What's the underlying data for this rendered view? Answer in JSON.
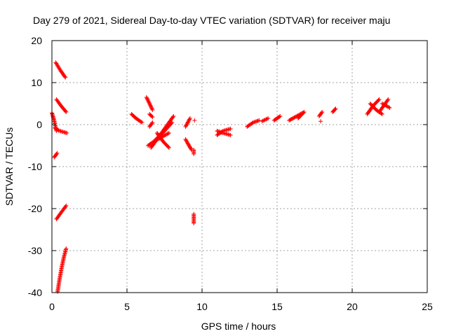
{
  "chart_data": {
    "type": "scatter",
    "title": "Day 279 of 2021, Sidereal Day-to-day VTEC variation (SDTVAR) for receiver maju",
    "xlabel": "GPS time / hours",
    "ylabel": "SDTVAR / TECUs",
    "xlim": [
      0,
      25
    ],
    "ylim": [
      -40,
      20
    ],
    "xticks": [
      0,
      5,
      10,
      15,
      20,
      25
    ],
    "yticks": [
      -40,
      -30,
      -20,
      -10,
      0,
      10,
      20
    ],
    "grid": true,
    "marker": "plus",
    "series_color": "#ff0000",
    "tracks": [
      {
        "x": [
          0.25,
          0.55,
          0.9
        ],
        "y": [
          14.8,
          13.0,
          11.2
        ]
      },
      {
        "x": [
          0.3,
          0.6,
          0.95
        ],
        "y": [
          6.0,
          4.5,
          3.0
        ]
      },
      {
        "x": [
          0.0,
          0.15,
          0.3
        ],
        "y": [
          2.8,
          1.0,
          -1.5
        ]
      },
      {
        "x": [
          0.2,
          0.45,
          0.8,
          1.0
        ],
        "y": [
          -0.8,
          -1.4,
          -1.8,
          -2.0
        ]
      },
      {
        "x": [
          0.15,
          0.35
        ],
        "y": [
          -7.8,
          -6.8
        ]
      },
      {
        "x": [
          0.3,
          0.6,
          0.95
        ],
        "y": [
          -22.5,
          -21.0,
          -19.3
        ]
      },
      {
        "x": [
          0.38,
          0.5,
          0.65,
          0.8,
          0.95
        ],
        "y": [
          -39.8,
          -37.0,
          -34.0,
          -31.5,
          -29.5
        ]
      },
      {
        "x": [
          5.3,
          5.6,
          6.0
        ],
        "y": [
          2.5,
          1.5,
          0.5
        ]
      },
      {
        "x": [
          6.3,
          6.5,
          6.7
        ],
        "y": [
          6.5,
          5.0,
          3.5
        ]
      },
      {
        "x": [
          6.5,
          6.7
        ],
        "y": [
          2.5,
          1.8
        ]
      },
      {
        "x": [
          6.4,
          6.8,
          7.3,
          7.8
        ],
        "y": [
          -5.0,
          -4.0,
          -3.0,
          -2.0
        ]
      },
      {
        "x": [
          6.6,
          7.0,
          7.5,
          8.0
        ],
        "y": [
          -5.5,
          -3.5,
          -1.5,
          0.5
        ]
      },
      {
        "x": [
          6.8,
          7.2,
          7.6,
          8.1
        ],
        "y": [
          -4.0,
          -2.5,
          -0.5,
          2.0
        ]
      },
      {
        "x": [
          6.5,
          6.7
        ],
        "y": [
          -0.5,
          0.5
        ]
      },
      {
        "x": [
          7.0,
          7.4,
          7.8
        ],
        "y": [
          -2.0,
          -4.0,
          -5.5
        ]
      },
      {
        "x": [
          8.9,
          9.2
        ],
        "y": [
          -0.5,
          1.5
        ]
      },
      {
        "x": [
          8.9,
          9.1,
          9.3
        ],
        "y": [
          -3.5,
          -4.8,
          -6.0
        ]
      },
      {
        "x": [
          9.45,
          9.45
        ],
        "y": [
          -6.0,
          -7.0
        ]
      },
      {
        "x": [
          9.5
        ],
        "y": [
          1.0
        ]
      },
      {
        "x": [
          9.45,
          9.45
        ],
        "y": [
          -21.3,
          -23.5
        ]
      },
      {
        "x": [
          11.0,
          11.4,
          11.9
        ],
        "y": [
          -1.5,
          -2.0,
          -2.5
        ]
      },
      {
        "x": [
          11.0,
          11.4,
          11.9
        ],
        "y": [
          -2.5,
          -1.5,
          -1.0
        ]
      },
      {
        "x": [
          13.0,
          13.4,
          13.8
        ],
        "y": [
          -0.5,
          0.5,
          1.0
        ]
      },
      {
        "x": [
          14.0,
          14.4
        ],
        "y": [
          0.8,
          1.5
        ]
      },
      {
        "x": [
          14.8,
          15.0,
          15.2
        ],
        "y": [
          1.0,
          1.5,
          2.0
        ]
      },
      {
        "x": [
          15.8,
          16.2,
          16.7
        ],
        "y": [
          1.0,
          1.8,
          2.8
        ]
      },
      {
        "x": [
          16.4,
          16.8
        ],
        "y": [
          1.5,
          3.0
        ]
      },
      {
        "x": [
          17.8,
          18.0
        ],
        "y": [
          2.0,
          3.0
        ]
      },
      {
        "x": [
          17.9
        ],
        "y": [
          0.8
        ]
      },
      {
        "x": [
          18.7,
          18.9
        ],
        "y": [
          3.0,
          3.8
        ]
      },
      {
        "x": [
          21.0,
          21.4,
          21.8
        ],
        "y": [
          2.5,
          4.5,
          6.0
        ]
      },
      {
        "x": [
          21.2,
          21.6,
          22.0
        ],
        "y": [
          5.0,
          3.5,
          2.5
        ]
      },
      {
        "x": [
          21.8,
          22.1,
          22.4
        ],
        "y": [
          3.0,
          4.5,
          6.0
        ]
      },
      {
        "x": [
          22.0,
          22.5
        ],
        "y": [
          5.0,
          4.0
        ]
      }
    ]
  }
}
